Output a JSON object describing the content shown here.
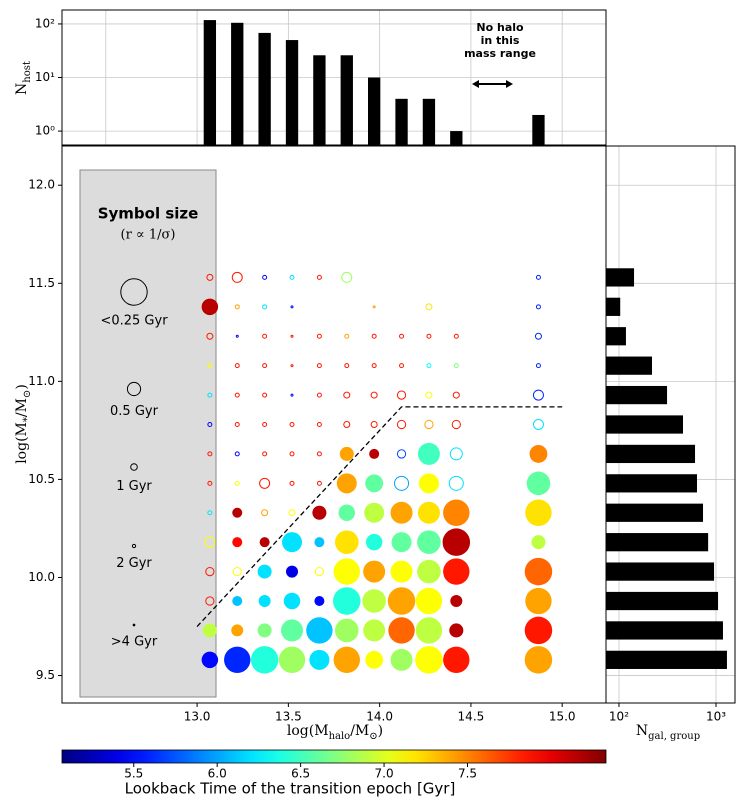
{
  "chart_data": [
    {
      "type": "bar",
      "log_y": true,
      "grid": true,
      "color": "#000000",
      "ylabel": [
        {
          "t": "N"
        },
        {
          "t": "host",
          "sub": 1
        }
      ],
      "x": [
        13.07,
        13.22,
        13.37,
        13.52,
        13.67,
        13.82,
        13.97,
        14.12,
        14.27,
        14.42,
        14.87
      ],
      "values": [
        118,
        105,
        68,
        50,
        26,
        26,
        10,
        4,
        4,
        1,
        2
      ],
      "xlim": [
        12.26,
        15.24
      ],
      "xticks": [
        12.5,
        13,
        13.5,
        14,
        14.5,
        15
      ],
      "ylim": [
        0.55,
        182
      ],
      "yticks": [
        {
          "value": 1,
          "label": "10⁰"
        },
        {
          "value": 10,
          "label": "10¹"
        },
        {
          "value": 100,
          "label": "10²"
        }
      ],
      "annotation": [
        "No halo",
        "in this",
        "mass range"
      ]
    },
    {
      "type": "scatter",
      "xlabel": [
        {
          "t": "log(M"
        },
        {
          "t": "halo",
          "sub": 1
        },
        {
          "t": "/M"
        },
        {
          "t": "⊙",
          "sub": 1
        },
        {
          "t": ")"
        }
      ],
      "ylabel": [
        {
          "t": "log(M"
        },
        {
          "t": "*",
          "sub": 1
        },
        {
          "t": "/M"
        },
        {
          "t": "⊙",
          "sub": 1
        },
        {
          "t": ")"
        }
      ],
      "xlim": [
        12.26,
        15.24
      ],
      "xticks": [
        {
          "value": 13,
          "label": "13.0"
        },
        13.5,
        {
          "value": 14,
          "label": "14.0"
        },
        14.5,
        {
          "value": 15,
          "label": "15.0"
        }
      ],
      "ylim": [
        9.36,
        12.2
      ],
      "yticks": [
        9.5,
        {
          "value": 10,
          "label": "10.0"
        },
        10.5,
        {
          "value": 11,
          "label": "11.0"
        },
        11.5,
        {
          "value": 12,
          "label": "12.0"
        }
      ],
      "colormap": "jet",
      "colorbar": {
        "label": "Lookback Time of the transition epoch [Gyr]",
        "clim": [
          5.07,
          8.33
        ],
        "ticks": [
          5.5,
          {
            "value": 6,
            "label": "6.0"
          },
          6.5,
          {
            "value": 7,
            "label": "7.0"
          },
          7.5
        ]
      },
      "size_legend": {
        "title": "Symbol size",
        "subtitle": "(r ∝ 1/σ)",
        "items": [
          {
            "sigma": 0.25,
            "label": "<0.25 Gyr"
          },
          {
            "sigma": 0.5,
            "label": "0.5 Gyr"
          },
          {
            "sigma": 1,
            "label": "1 Gyr"
          },
          {
            "sigma": 2,
            "label": "2 Gyr"
          },
          {
            "sigma": 4,
            "label": ">4 Gyr"
          }
        ]
      },
      "threshold_line": {
        "x": [
          13.0,
          14.12,
          15.0
        ],
        "y": [
          9.75,
          10.87,
          10.87
        ]
      },
      "points": [
        [
          13.07,
          9.58,
          5.5,
          0.4,
          1
        ],
        [
          13.22,
          9.58,
          5.6,
          0.25,
          1
        ],
        [
          13.37,
          9.58,
          6.4,
          0.24,
          1
        ],
        [
          13.52,
          9.58,
          6.8,
          0.25,
          1
        ],
        [
          13.67,
          9.58,
          6.2,
          0.33,
          1
        ],
        [
          13.82,
          9.58,
          7.4,
          0.25,
          1
        ],
        [
          13.97,
          9.58,
          7.1,
          0.37,
          1
        ],
        [
          14.12,
          9.58,
          6.8,
          0.3,
          1
        ],
        [
          14.27,
          9.58,
          7.1,
          0.24,
          1
        ],
        [
          14.42,
          9.58,
          7.85,
          0.25,
          1
        ],
        [
          14.87,
          9.58,
          7.4,
          0.24,
          1
        ],
        [
          13.07,
          9.73,
          6.9,
          0.47,
          1
        ],
        [
          13.22,
          9.73,
          7.4,
          0.55,
          1
        ],
        [
          13.37,
          9.73,
          6.7,
          0.47,
          1
        ],
        [
          13.52,
          9.73,
          6.6,
          0.3,
          1
        ],
        [
          13.67,
          9.73,
          6.1,
          0.25,
          1
        ],
        [
          13.82,
          9.73,
          6.8,
          0.28,
          1
        ],
        [
          13.97,
          9.73,
          6.9,
          0.3,
          1
        ],
        [
          14.12,
          9.73,
          7.6,
          0.25,
          1
        ],
        [
          14.27,
          9.73,
          6.9,
          0.25,
          1
        ],
        [
          14.42,
          9.73,
          8.15,
          0.47,
          1
        ],
        [
          14.87,
          9.73,
          7.85,
          0.24,
          1
        ],
        [
          13.07,
          9.88,
          7.85,
          0.8,
          0
        ],
        [
          13.22,
          9.88,
          6.1,
          0.66,
          1
        ],
        [
          13.37,
          9.88,
          6.2,
          0.55,
          1
        ],
        [
          13.52,
          9.88,
          6.2,
          0.4,
          1
        ],
        [
          13.67,
          9.88,
          5.5,
          0.66,
          1
        ],
        [
          13.82,
          9.88,
          6.4,
          0.24,
          1
        ],
        [
          13.97,
          9.88,
          6.9,
          0.28,
          1
        ],
        [
          14.12,
          9.88,
          7.4,
          0.24,
          1
        ],
        [
          14.27,
          9.88,
          7.1,
          0.25,
          1
        ],
        [
          14.42,
          9.88,
          8.15,
          0.55,
          1
        ],
        [
          14.87,
          9.88,
          7.4,
          0.25,
          1
        ],
        [
          13.07,
          10.03,
          7.85,
          0.8,
          0
        ],
        [
          13.22,
          10.03,
          7.1,
          0.8,
          0
        ],
        [
          13.37,
          10.03,
          6.2,
          0.47,
          1
        ],
        [
          13.52,
          10.03,
          5.4,
          0.55,
          1
        ],
        [
          13.67,
          10.03,
          7.1,
          0.8,
          0
        ],
        [
          13.82,
          10.03,
          7.1,
          0.25,
          1
        ],
        [
          13.97,
          10.03,
          7.4,
          0.3,
          1
        ],
        [
          14.12,
          10.03,
          7.1,
          0.3,
          1
        ],
        [
          14.27,
          10.03,
          6.9,
          0.28,
          1
        ],
        [
          14.42,
          10.03,
          7.85,
          0.25,
          1
        ],
        [
          14.87,
          10.03,
          7.6,
          0.24,
          1
        ],
        [
          13.07,
          10.18,
          7.1,
          0.66,
          0
        ],
        [
          13.22,
          10.18,
          7.9,
          0.66,
          1
        ],
        [
          13.37,
          10.18,
          8.15,
          0.66,
          1
        ],
        [
          13.52,
          10.18,
          6.2,
          0.33,
          1
        ],
        [
          13.67,
          10.18,
          6.1,
          0.66,
          1
        ],
        [
          13.82,
          10.18,
          7.2,
          0.28,
          1
        ],
        [
          13.97,
          10.18,
          6.4,
          0.4,
          1
        ],
        [
          14.12,
          10.18,
          6.6,
          0.33,
          1
        ],
        [
          14.27,
          10.18,
          6.6,
          0.28,
          1
        ],
        [
          14.42,
          10.18,
          8.15,
          0.24,
          1
        ],
        [
          14.87,
          10.18,
          6.9,
          0.47,
          1
        ],
        [
          13.07,
          10.33,
          6.2,
          1.65,
          0
        ],
        [
          13.22,
          10.33,
          8.15,
          0.66,
          1
        ],
        [
          13.37,
          10.33,
          7.4,
          1.1,
          0
        ],
        [
          13.52,
          10.33,
          7.1,
          1.1,
          0
        ],
        [
          13.67,
          10.33,
          8.15,
          0.47,
          1
        ],
        [
          13.82,
          10.33,
          6.6,
          0.4,
          1
        ],
        [
          13.97,
          10.33,
          6.9,
          0.33,
          1
        ],
        [
          14.12,
          10.33,
          7.4,
          0.3,
          1
        ],
        [
          14.27,
          10.33,
          7.2,
          0.3,
          1
        ],
        [
          14.42,
          10.33,
          7.5,
          0.25,
          1
        ],
        [
          14.87,
          10.33,
          7.2,
          0.25,
          1
        ],
        [
          13.07,
          10.48,
          7.85,
          1.65,
          0
        ],
        [
          13.22,
          10.48,
          7.1,
          1.65,
          0
        ],
        [
          13.37,
          10.48,
          7.85,
          0.66,
          0
        ],
        [
          13.52,
          10.48,
          7.85,
          1.65,
          0
        ],
        [
          13.67,
          10.48,
          7.85,
          1.65,
          0
        ],
        [
          13.82,
          10.48,
          7.4,
          0.33,
          1
        ],
        [
          13.97,
          10.48,
          6.6,
          0.37,
          1
        ],
        [
          14.12,
          10.48,
          6.0,
          0.47,
          0
        ],
        [
          14.27,
          10.48,
          7.1,
          0.33,
          1
        ],
        [
          14.42,
          10.48,
          6.2,
          0.47,
          0
        ],
        [
          14.87,
          10.48,
          6.6,
          0.28,
          1
        ],
        [
          13.07,
          10.63,
          7.85,
          1.65,
          0
        ],
        [
          13.22,
          10.63,
          5.5,
          1.65,
          0
        ],
        [
          13.37,
          10.63,
          7.85,
          1.65,
          0
        ],
        [
          13.52,
          10.63,
          7.85,
          1.65,
          0
        ],
        [
          13.67,
          10.63,
          7.85,
          1.65,
          0
        ],
        [
          13.82,
          10.63,
          7.4,
          0.47,
          1
        ],
        [
          13.97,
          10.63,
          8.15,
          0.66,
          1
        ],
        [
          14.12,
          10.63,
          5.7,
          0.8,
          0
        ],
        [
          14.27,
          10.63,
          6.5,
          0.3,
          1
        ],
        [
          14.42,
          10.63,
          6.2,
          0.55,
          0
        ],
        [
          14.87,
          10.63,
          7.5,
          0.37,
          1
        ],
        [
          13.07,
          10.78,
          5.5,
          1.65,
          0
        ],
        [
          13.22,
          10.78,
          7.85,
          1.65,
          0
        ],
        [
          13.37,
          10.78,
          7.85,
          1.65,
          0
        ],
        [
          13.52,
          10.78,
          7.85,
          1.65,
          0
        ],
        [
          13.67,
          10.78,
          7.85,
          1.65,
          0
        ],
        [
          13.82,
          10.78,
          7.85,
          1.1,
          0
        ],
        [
          13.97,
          10.78,
          7.85,
          1.1,
          0
        ],
        [
          14.12,
          10.78,
          7.85,
          0.8,
          0
        ],
        [
          14.27,
          10.78,
          7.4,
          0.8,
          0
        ],
        [
          14.42,
          10.78,
          7.85,
          0.8,
          0
        ],
        [
          14.87,
          10.78,
          6.2,
          0.66,
          0
        ],
        [
          13.07,
          10.93,
          6.2,
          1.65,
          0
        ],
        [
          13.22,
          10.93,
          7.85,
          1.65,
          0
        ],
        [
          13.37,
          10.93,
          7.85,
          1.65,
          0
        ],
        [
          13.52,
          10.93,
          5.5,
          3.3,
          0
        ],
        [
          13.67,
          10.93,
          7.85,
          1.65,
          0
        ],
        [
          13.82,
          10.93,
          7.85,
          1.1,
          0
        ],
        [
          13.97,
          10.93,
          7.85,
          1.1,
          0
        ],
        [
          14.12,
          10.93,
          7.85,
          0.8,
          0
        ],
        [
          14.27,
          10.93,
          7.1,
          1.1,
          0
        ],
        [
          14.42,
          10.93,
          7.85,
          1.1,
          0
        ],
        [
          14.87,
          10.93,
          5.6,
          0.66,
          0
        ],
        [
          13.07,
          11.08,
          7.1,
          1.65,
          0
        ],
        [
          13.22,
          11.08,
          7.85,
          1.65,
          0
        ],
        [
          13.37,
          11.08,
          7.85,
          1.65,
          0
        ],
        [
          13.52,
          11.08,
          7.85,
          3.3,
          0
        ],
        [
          13.67,
          11.08,
          7.85,
          1.65,
          0
        ],
        [
          13.82,
          11.08,
          7.85,
          1.65,
          0
        ],
        [
          13.97,
          11.08,
          7.85,
          1.65,
          0
        ],
        [
          14.12,
          11.08,
          7.85,
          1.65,
          0
        ],
        [
          14.27,
          11.08,
          6.3,
          1.65,
          0
        ],
        [
          14.42,
          11.08,
          6.7,
          1.65,
          0
        ],
        [
          14.87,
          11.08,
          5.6,
          1.65,
          0
        ],
        [
          13.07,
          11.23,
          7.85,
          1.1,
          0
        ],
        [
          13.22,
          11.23,
          5.5,
          3.3,
          0
        ],
        [
          13.37,
          11.23,
          7.85,
          1.65,
          0
        ],
        [
          13.52,
          11.23,
          7.85,
          3.3,
          0
        ],
        [
          13.67,
          11.23,
          7.85,
          1.65,
          0
        ],
        [
          13.82,
          11.23,
          7.4,
          1.65,
          0
        ],
        [
          13.97,
          11.23,
          7.85,
          1.65,
          0
        ],
        [
          14.12,
          11.23,
          7.85,
          1.65,
          0
        ],
        [
          14.27,
          11.23,
          7.85,
          1.65,
          0
        ],
        [
          14.42,
          11.23,
          7.85,
          1.65,
          0
        ],
        [
          14.87,
          11.23,
          5.6,
          1.1,
          0
        ],
        [
          13.07,
          11.38,
          8.15,
          0.4,
          1
        ],
        [
          13.22,
          11.38,
          7.4,
          1.65,
          0
        ],
        [
          13.37,
          11.38,
          6.2,
          1.65,
          0
        ],
        [
          13.52,
          11.38,
          5.5,
          3.3,
          0
        ],
        [
          13.97,
          11.38,
          7.4,
          3.3,
          0
        ],
        [
          14.27,
          11.38,
          7.2,
          1.1,
          0
        ],
        [
          14.87,
          11.38,
          5.6,
          1.65,
          0
        ],
        [
          13.07,
          11.53,
          7.85,
          1.1,
          0
        ],
        [
          13.22,
          11.53,
          7.85,
          0.66,
          0
        ],
        [
          13.37,
          11.53,
          5.5,
          1.65,
          0
        ],
        [
          13.52,
          11.53,
          6.2,
          1.65,
          0
        ],
        [
          13.67,
          11.53,
          7.85,
          1.65,
          0
        ],
        [
          13.82,
          11.53,
          6.8,
          0.66,
          0
        ],
        [
          14.87,
          11.53,
          5.6,
          1.65,
          0
        ]
      ]
    },
    {
      "type": "barh",
      "log_x": true,
      "grid": true,
      "color": "#000000",
      "xlabel": [
        {
          "t": "N"
        },
        {
          "t": "gal, group",
          "sub": 1
        }
      ],
      "y": [
        9.58,
        9.73,
        9.88,
        10.03,
        10.18,
        10.33,
        10.48,
        10.63,
        10.78,
        10.93,
        11.08,
        11.23,
        11.38,
        11.53
      ],
      "values": [
        1297,
        1180,
        1050,
        955,
        830,
        735,
        637,
        608,
        457,
        313,
        219,
        118,
        103,
        143
      ],
      "xlim": [
        73.5,
        1570
      ],
      "xticks": [
        {
          "value": 100,
          "label": "10²"
        },
        {
          "value": 1000,
          "label": "10³"
        }
      ],
      "ylim": [
        9.36,
        12.2
      ],
      "yticks": [
        9.5,
        10,
        10.5,
        11,
        11.5,
        12
      ]
    }
  ]
}
